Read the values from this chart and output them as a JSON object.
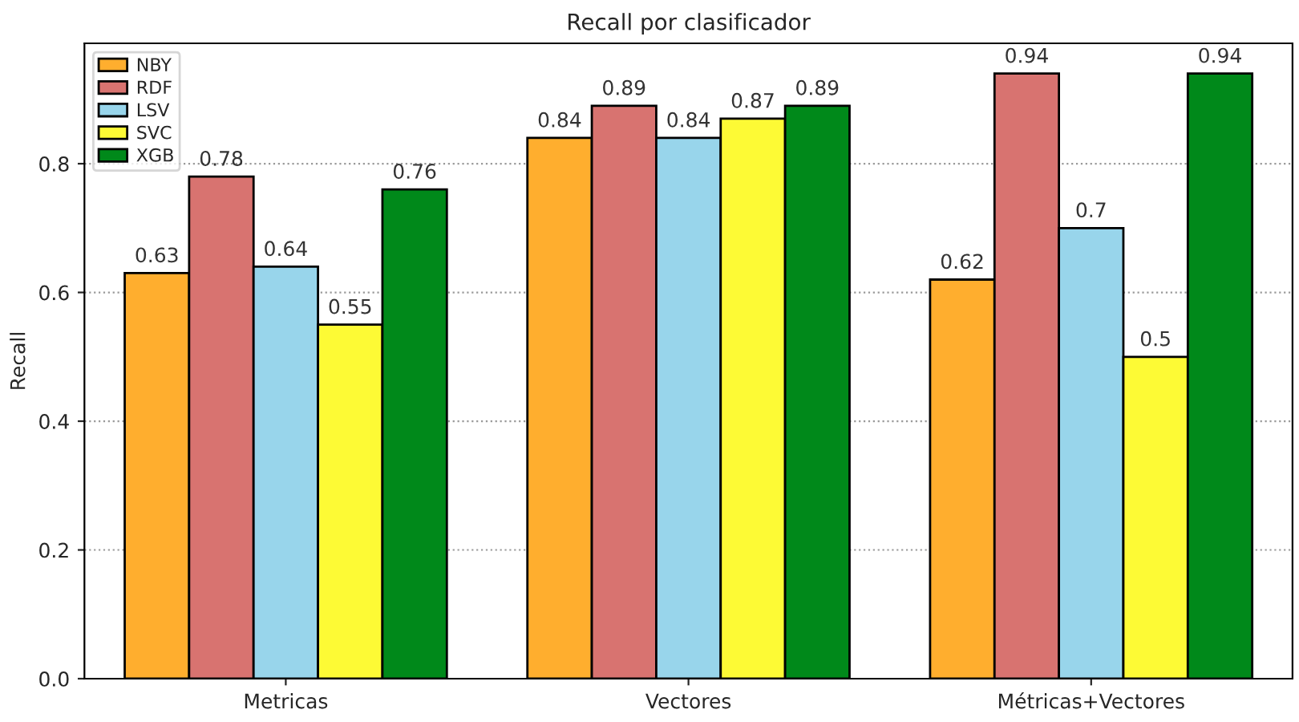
{
  "chart_data": {
    "type": "bar",
    "title": "Recall por clasificador",
    "ylabel": "Recall",
    "categories": [
      "Metricas",
      "Vectores",
      "Métricas+Vectores"
    ],
    "series": [
      {
        "name": "NBY",
        "color": "#ffae2e",
        "values": [
          0.63,
          0.84,
          0.62
        ]
      },
      {
        "name": "RDF",
        "color": "#d87370",
        "values": [
          0.78,
          0.89,
          0.94
        ]
      },
      {
        "name": "LSV",
        "color": "#98d5eb",
        "values": [
          0.64,
          0.84,
          0.7
        ]
      },
      {
        "name": "SVC",
        "color": "#fdfa35",
        "values": [
          0.55,
          0.87,
          0.5
        ]
      },
      {
        "name": "XGB",
        "color": "#00891a",
        "values": [
          0.76,
          0.89,
          0.94
        ]
      }
    ],
    "ylim": [
      0,
      0.987
    ],
    "yticks": [
      {
        "value": 0,
        "label": "0.0"
      },
      0.2,
      0.4,
      0.6,
      0.8
    ],
    "grid": "y",
    "legend": "top left",
    "data_labels": true
  }
}
